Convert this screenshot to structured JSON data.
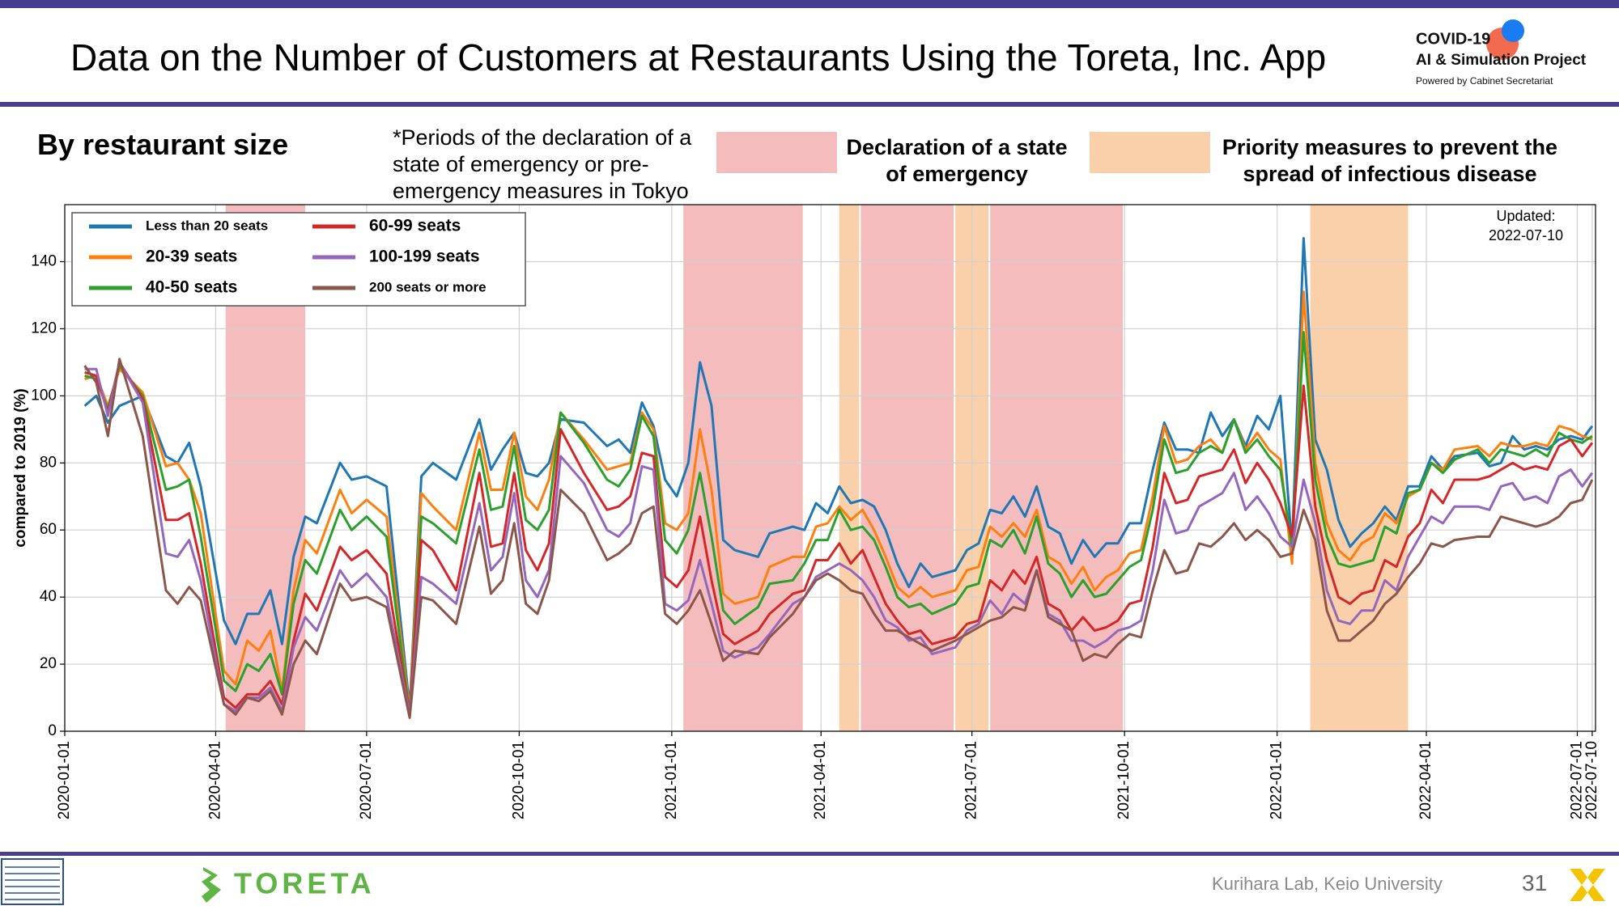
{
  "header": {
    "title": "Data on the Number of Customers at Restaurants Using the Toreta, Inc. App",
    "logo": {
      "name": "COVID-19",
      "project": "AI & Simulation Project",
      "powered": "Powered by Cabinet Secretariat"
    }
  },
  "subtitle": "By restaurant size",
  "note": [
    "*Periods of the declaration of a",
    "state of emergency or pre-",
    "emergency measures in Tokyo"
  ],
  "chart_data": {
    "type": "line",
    "ylabel": "compared to 2019 (%)",
    "annotation": [
      "Updated:",
      "2022-07-10"
    ],
    "xlim": [
      "2020-01-01",
      "2022-07-12"
    ],
    "xticks": [
      "2020-01-01",
      "2020-04-01",
      "2020-07-01",
      "2020-10-01",
      "2021-01-01",
      "2021-04-01",
      "2021-07-01",
      "2021-10-01",
      "2022-01-01",
      "2022-04-01",
      "2022-07-01",
      "2022-07-10"
    ],
    "ylim": [
      0,
      157
    ],
    "yticks": [
      0,
      20,
      40,
      60,
      80,
      100,
      120,
      140
    ],
    "grid": true,
    "legend": "upper left",
    "shading": [
      {
        "label": "Declaration of a state of emergency",
        "color": "#f5bcbe",
        "ranges": [
          [
            "2020-04-07",
            "2020-05-25"
          ],
          [
            "2021-01-08",
            "2021-03-21"
          ],
          [
            "2021-04-25",
            "2021-06-20"
          ],
          [
            "2021-07-12",
            "2021-09-30"
          ]
        ]
      },
      {
        "label": "Priority measures to prevent the spread of infectious disease",
        "color": "#f9d0aa",
        "ranges": [
          [
            "2021-04-12",
            "2021-04-24"
          ],
          [
            "2021-06-21",
            "2021-07-11"
          ],
          [
            "2022-01-21",
            "2022-03-21"
          ]
        ]
      }
    ],
    "x": [
      "2020-01-13",
      "2020-01-20",
      "2020-01-27",
      "2020-02-03",
      "2020-02-17",
      "2020-03-02",
      "2020-03-09",
      "2020-03-16",
      "2020-03-23",
      "2020-04-06",
      "2020-04-13",
      "2020-04-20",
      "2020-04-27",
      "2020-05-04",
      "2020-05-11",
      "2020-05-18",
      "2020-05-25",
      "2020-06-01",
      "2020-06-15",
      "2020-06-22",
      "2020-07-01",
      "2020-07-13",
      "2020-07-27",
      "2020-08-03",
      "2020-08-10",
      "2020-08-24",
      "2020-09-07",
      "2020-09-14",
      "2020-09-21",
      "2020-09-28",
      "2020-10-05",
      "2020-10-12",
      "2020-10-19",
      "2020-10-26",
      "2020-11-09",
      "2020-11-23",
      "2020-11-30",
      "2020-12-07",
      "2020-12-14",
      "2020-12-21",
      "2020-12-28",
      "2021-01-04",
      "2021-01-11",
      "2021-01-18",
      "2021-01-25",
      "2021-02-01",
      "2021-02-08",
      "2021-02-22",
      "2021-03-01",
      "2021-03-15",
      "2021-03-22",
      "2021-03-29",
      "2021-04-05",
      "2021-04-12",
      "2021-04-19",
      "2021-04-26",
      "2021-05-03",
      "2021-05-10",
      "2021-05-17",
      "2021-05-24",
      "2021-05-31",
      "2021-06-07",
      "2021-06-21",
      "2021-06-28",
      "2021-07-05",
      "2021-07-12",
      "2021-07-19",
      "2021-07-26",
      "2021-08-02",
      "2021-08-09",
      "2021-08-16",
      "2021-08-23",
      "2021-08-30",
      "2021-09-06",
      "2021-09-13",
      "2021-09-20",
      "2021-09-27",
      "2021-10-04",
      "2021-10-11",
      "2021-10-18",
      "2021-10-25",
      "2021-11-01",
      "2021-11-08",
      "2021-11-15",
      "2021-11-22",
      "2021-11-29",
      "2021-12-06",
      "2021-12-13",
      "2021-12-20",
      "2021-12-27",
      "2022-01-03",
      "2022-01-10",
      "2022-01-17",
      "2022-01-24",
      "2022-01-31",
      "2022-02-07",
      "2022-02-14",
      "2022-02-21",
      "2022-02-28",
      "2022-03-07",
      "2022-03-14",
      "2022-03-21",
      "2022-03-28",
      "2022-04-04",
      "2022-04-11",
      "2022-04-18",
      "2022-05-02",
      "2022-05-09",
      "2022-05-16",
      "2022-05-23",
      "2022-05-30",
      "2022-06-06",
      "2022-06-13",
      "2022-06-20",
      "2022-06-27",
      "2022-07-04",
      "2022-07-10"
    ],
    "series": [
      {
        "name": "Less than 20 seats",
        "color": "#1f77b4",
        "values": [
          97,
          100,
          92,
          97,
          100,
          82,
          80,
          86,
          73,
          33,
          26,
          35,
          35,
          42,
          26,
          52,
          64,
          62,
          80,
          75,
          76,
          73,
          7,
          76,
          80,
          75,
          93,
          78,
          84,
          89,
          77,
          76,
          80,
          93,
          92,
          85,
          87,
          83,
          98,
          91,
          75,
          70,
          80,
          110,
          97,
          57,
          54,
          52,
          59,
          61,
          60,
          68,
          65,
          73,
          68,
          69,
          67,
          60,
          50,
          43,
          50,
          46,
          48,
          54,
          56,
          66,
          65,
          70,
          64,
          73,
          61,
          59,
          50,
          57,
          52,
          56,
          56,
          62,
          62,
          78,
          92,
          84,
          84,
          83,
          95,
          88,
          93,
          85,
          94,
          90,
          100,
          55,
          147,
          87,
          78,
          63,
          55,
          59,
          62,
          67,
          63,
          73,
          73,
          82,
          78,
          82,
          83,
          79,
          80,
          88,
          84,
          85,
          84,
          87,
          88,
          87,
          91
        ]
      },
      {
        "name": "20-39 seats",
        "color": "#ff7f0e",
        "values": [
          105,
          106,
          97,
          108,
          101,
          79,
          80,
          75,
          65,
          18,
          14,
          27,
          24,
          30,
          12,
          42,
          57,
          53,
          72,
          65,
          69,
          64,
          6,
          71,
          67,
          60,
          89,
          72,
          72,
          89,
          70,
          66,
          75,
          95,
          87,
          78,
          79,
          80,
          95,
          90,
          62,
          60,
          65,
          90,
          72,
          41,
          38,
          40,
          49,
          52,
          52,
          61,
          62,
          67,
          63,
          66,
          60,
          52,
          43,
          40,
          43,
          40,
          42,
          48,
          49,
          61,
          58,
          62,
          58,
          66,
          52,
          50,
          44,
          49,
          42,
          46,
          48,
          53,
          54,
          70,
          91,
          80,
          81,
          85,
          87,
          83,
          93,
          84,
          89,
          84,
          81,
          50,
          131,
          80,
          62,
          54,
          51,
          56,
          58,
          65,
          62,
          70,
          72,
          80,
          78,
          84,
          85,
          82,
          86,
          85,
          85,
          86,
          85,
          91,
          90,
          88,
          87
        ]
      },
      {
        "name": "40-50 seats",
        "color": "#2ca02c",
        "values": [
          106,
          105,
          96,
          109,
          100,
          72,
          73,
          75,
          58,
          15,
          12,
          20,
          18,
          23,
          11,
          38,
          51,
          47,
          66,
          60,
          64,
          58,
          5,
          64,
          62,
          56,
          84,
          66,
          67,
          85,
          63,
          60,
          66,
          95,
          86,
          75,
          73,
          78,
          94,
          88,
          57,
          53,
          60,
          77,
          58,
          36,
          32,
          37,
          44,
          45,
          50,
          57,
          57,
          66,
          60,
          61,
          57,
          49,
          40,
          37,
          38,
          35,
          38,
          43,
          44,
          57,
          55,
          60,
          53,
          64,
          50,
          47,
          40,
          45,
          40,
          41,
          45,
          49,
          51,
          66,
          87,
          77,
          78,
          83,
          85,
          83,
          93,
          83,
          87,
          82,
          78,
          55,
          119,
          75,
          58,
          50,
          49,
          50,
          51,
          61,
          59,
          71,
          72,
          80,
          77,
          81,
          84,
          80,
          84,
          83,
          82,
          84,
          82,
          89,
          87,
          86,
          88
        ]
      },
      {
        "name": "60-99 seats",
        "color": "#d62728",
        "values": [
          107,
          106,
          95,
          110,
          99,
          63,
          63,
          65,
          50,
          10,
          7,
          11,
          11,
          15,
          8,
          27,
          41,
          36,
          55,
          51,
          54,
          47,
          5,
          57,
          54,
          42,
          77,
          55,
          56,
          77,
          54,
          48,
          56,
          90,
          77,
          66,
          67,
          70,
          83,
          82,
          46,
          43,
          48,
          64,
          45,
          29,
          26,
          30,
          35,
          41,
          42,
          51,
          51,
          56,
          50,
          54,
          46,
          38,
          33,
          29,
          30,
          26,
          28,
          32,
          33,
          45,
          42,
          48,
          44,
          52,
          38,
          36,
          30,
          34,
          30,
          31,
          33,
          38,
          39,
          55,
          77,
          68,
          69,
          76,
          77,
          78,
          84,
          74,
          80,
          75,
          68,
          58,
          103,
          67,
          51,
          40,
          38,
          41,
          42,
          51,
          49,
          58,
          62,
          72,
          68,
          75,
          75,
          76,
          78,
          80,
          78,
          79,
          78,
          85,
          87,
          82,
          86
        ]
      },
      {
        "name": "100-199 seats",
        "color": "#9467bd",
        "values": [
          108,
          108,
          94,
          110,
          98,
          53,
          52,
          57,
          45,
          8,
          6,
          10,
          10,
          13,
          6,
          25,
          34,
          30,
          48,
          43,
          47,
          40,
          5,
          46,
          44,
          38,
          68,
          48,
          52,
          71,
          45,
          40,
          48,
          82,
          74,
          60,
          58,
          62,
          79,
          78,
          38,
          36,
          39,
          51,
          38,
          24,
          22,
          25,
          29,
          38,
          40,
          46,
          48,
          50,
          48,
          45,
          40,
          33,
          31,
          27,
          28,
          23,
          25,
          30,
          32,
          39,
          35,
          41,
          38,
          48,
          35,
          33,
          27,
          27,
          25,
          27,
          30,
          31,
          33,
          48,
          69,
          59,
          60,
          67,
          69,
          71,
          77,
          66,
          70,
          65,
          58,
          55,
          75,
          62,
          42,
          33,
          32,
          36,
          36,
          45,
          42,
          52,
          58,
          64,
          62,
          67,
          67,
          66,
          73,
          74,
          69,
          70,
          68,
          76,
          78,
          73,
          77
        ]
      },
      {
        "name": "200 seats or more",
        "color": "#8c564b",
        "values": [
          109,
          104,
          88,
          111,
          88,
          42,
          38,
          43,
          39,
          8,
          5,
          10,
          9,
          12,
          5,
          20,
          27,
          23,
          44,
          39,
          40,
          37,
          4,
          40,
          39,
          32,
          61,
          41,
          45,
          62,
          38,
          35,
          45,
          72,
          65,
          51,
          53,
          56,
          65,
          67,
          35,
          32,
          36,
          42,
          32,
          21,
          24,
          23,
          28,
          35,
          40,
          45,
          47,
          45,
          42,
          41,
          35,
          30,
          30,
          28,
          26,
          24,
          27,
          29,
          31,
          33,
          34,
          37,
          36,
          48,
          34,
          32,
          30,
          21,
          23,
          22,
          26,
          29,
          28,
          42,
          54,
          47,
          48,
          56,
          55,
          58,
          62,
          57,
          60,
          57,
          52,
          53,
          66,
          57,
          36,
          27,
          27,
          30,
          33,
          38,
          41,
          46,
          50,
          56,
          55,
          57,
          58,
          58,
          64,
          63,
          62,
          61,
          62,
          64,
          68,
          69,
          75
        ]
      }
    ]
  },
  "footer": {
    "brand": "TORETA",
    "credit": "Kurihara Lab, Keio University",
    "page": "31"
  }
}
